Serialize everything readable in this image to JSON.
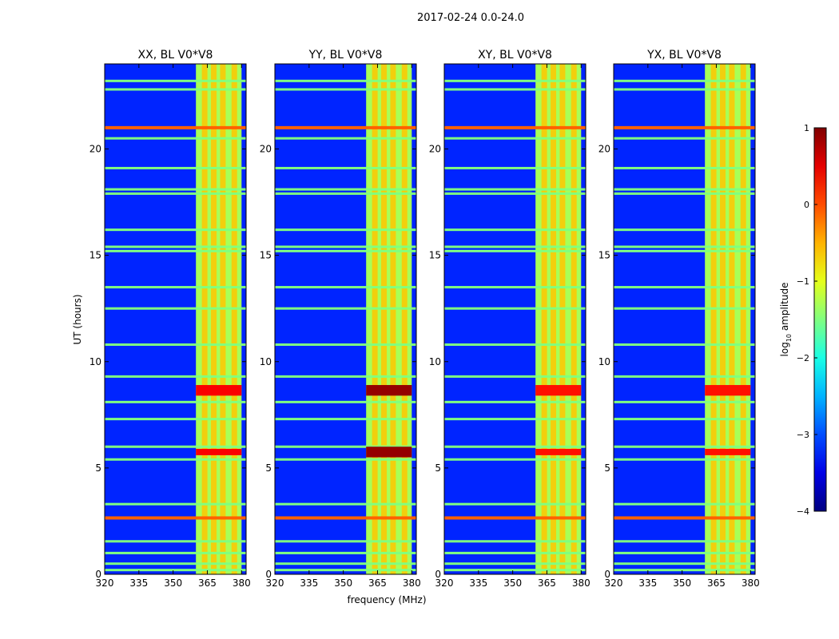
{
  "chart_data": {
    "type": "heatmap",
    "suptitle": "2017-02-24 0.0-24.0",
    "xlabel": "frequency (MHz)",
    "ylabel": "UT (hours)",
    "xlim": [
      320,
      382
    ],
    "ylim": [
      0,
      24
    ],
    "x_ticks": [
      320,
      335,
      350,
      365,
      380
    ],
    "x_tick_labels": [
      "320",
      "335",
      "350",
      "365",
      "380"
    ],
    "y_ticks": [
      0,
      5,
      10,
      15,
      20
    ],
    "y_tick_labels": [
      "0",
      "5",
      "10",
      "15",
      "20"
    ],
    "colorbar": {
      "label": "log",
      "label_sub": "10",
      "label_rest": " amplitude",
      "range": [
        -4,
        1
      ],
      "ticks": [
        -4,
        -3,
        -2,
        -1,
        0,
        1
      ],
      "tick_labels": [
        "−4",
        "−3",
        "−2",
        "−1",
        "0",
        "1"
      ],
      "colormap": "jet"
    },
    "panels": [
      {
        "title": "XX, BL V0*V8",
        "bright_times": [
          [
            5.6,
            5.9
          ],
          [
            8.4,
            8.9
          ]
        ],
        "peak_value": 0.4
      },
      {
        "title": "YY, BL V0*V8",
        "bright_times": [
          [
            5.5,
            6.0
          ],
          [
            8.4,
            8.9
          ]
        ],
        "peak_value": 0.9
      },
      {
        "title": "XY, BL V0*V8",
        "bright_times": [
          [
            5.6,
            5.9
          ],
          [
            8.4,
            8.9
          ]
        ],
        "peak_value": 0.3
      },
      {
        "title": "YX, BL V0*V8",
        "bright_times": [
          [
            5.6,
            5.9
          ],
          [
            8.4,
            8.9
          ]
        ],
        "peak_value": 0.3
      }
    ],
    "series": [
      {
        "name": "background",
        "value": -3.2
      },
      {
        "name": "RFI band 360-380 MHz",
        "freq_range": [
          360,
          380
        ],
        "value": -1.3
      },
      {
        "name": "RFI sub-channels",
        "freqs": [
          364,
          368,
          372,
          377
        ],
        "value": -0.6
      },
      {
        "name": "strong time-row",
        "times": [
          2.65,
          21.0
        ],
        "value": -0.1
      },
      {
        "name": "broadband flagged rows",
        "times": [
          0.2,
          0.5,
          1.0,
          1.55,
          3.3,
          5.4,
          6.0,
          7.3,
          8.1,
          9.3,
          10.8,
          12.5,
          13.5,
          15.2,
          15.4,
          16.2,
          17.9,
          18.1,
          19.1,
          20.5,
          22.8,
          23.2
        ],
        "value": -1.5
      }
    ]
  }
}
